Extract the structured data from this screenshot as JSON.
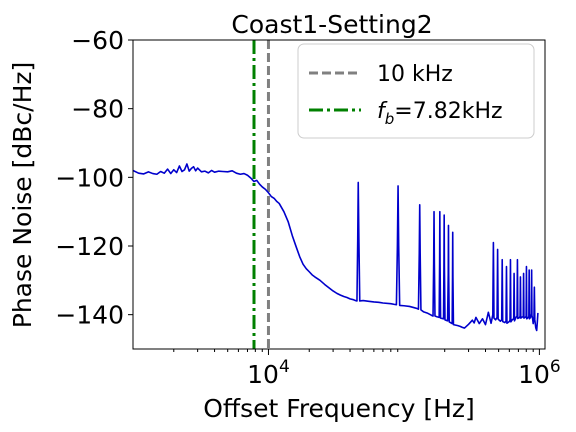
{
  "chart_data": {
    "type": "line",
    "title": "Coast1-Setting2",
    "xlabel": "Offset Frequency [Hz]",
    "ylabel": "Phase Noise [dBc/Hz]",
    "xscale": "log",
    "xlim": [
      1000,
      1100000
    ],
    "ylim": [
      -150,
      -60
    ],
    "x_ticks": [
      {
        "value": 10000,
        "base": "10",
        "exp": "4"
      },
      {
        "value": 1000000,
        "base": "10",
        "exp": "6"
      }
    ],
    "y_ticks": [
      {
        "value": -60,
        "label": "−60"
      },
      {
        "value": -80,
        "label": "−80"
      },
      {
        "value": -100,
        "label": "−100"
      },
      {
        "value": -120,
        "label": "−120"
      },
      {
        "value": -140,
        "label": "−140"
      }
    ],
    "grid": false,
    "legend_position": "top-right",
    "series": [
      {
        "color": "#0000cc",
        "style": "solid",
        "points": [
          [
            1000,
            -98.0
          ],
          [
            1100,
            -98.8
          ],
          [
            1200,
            -99.0
          ],
          [
            1300,
            -98.4
          ],
          [
            1400,
            -98.9
          ],
          [
            1500,
            -99.1
          ],
          [
            1600,
            -98.3
          ],
          [
            1700,
            -98.8
          ],
          [
            1800,
            -97.6
          ],
          [
            1900,
            -98.9
          ],
          [
            2000,
            -97.8
          ],
          [
            2100,
            -98.6
          ],
          [
            2200,
            -96.7
          ],
          [
            2300,
            -98.3
          ],
          [
            2400,
            -97.8
          ],
          [
            2500,
            -96.1
          ],
          [
            2600,
            -98.2
          ],
          [
            2700,
            -97.4
          ],
          [
            2800,
            -96.9
          ],
          [
            2900,
            -98.1
          ],
          [
            3000,
            -97.3
          ],
          [
            3200,
            -98.4
          ],
          [
            3400,
            -98.2
          ],
          [
            3600,
            -98.7
          ],
          [
            3800,
            -98.0
          ],
          [
            4000,
            -98.5
          ],
          [
            4300,
            -98.2
          ],
          [
            4600,
            -98.3
          ],
          [
            5000,
            -98.4
          ],
          [
            5400,
            -98.1
          ],
          [
            5800,
            -98.8
          ],
          [
            6200,
            -99.1
          ],
          [
            6600,
            -98.9
          ],
          [
            7000,
            -99.4
          ],
          [
            7400,
            -100.2
          ],
          [
            7800,
            -101.2
          ],
          [
            8200,
            -100.9
          ],
          [
            8600,
            -102.0
          ],
          [
            9000,
            -102.8
          ],
          [
            9500,
            -103.5
          ],
          [
            10000,
            -104.5
          ],
          [
            10500,
            -105.6
          ],
          [
            11000,
            -106.1
          ],
          [
            11500,
            -107.0
          ],
          [
            12000,
            -107.6
          ],
          [
            13000,
            -110.0
          ],
          [
            14000,
            -113.0
          ],
          [
            15000,
            -117.0
          ],
          [
            16000,
            -120.2
          ],
          [
            17000,
            -123.1
          ],
          [
            18000,
            -125.3
          ],
          [
            19000,
            -126.6
          ],
          [
            20000,
            -127.5
          ],
          [
            21000,
            -128.4
          ],
          [
            22000,
            -129.0
          ],
          [
            24000,
            -130.0
          ],
          [
            26000,
            -131.2
          ],
          [
            28000,
            -132.2
          ],
          [
            30000,
            -133.1
          ],
          [
            32000,
            -133.8
          ],
          [
            34000,
            -134.3
          ],
          [
            36000,
            -134.7
          ],
          [
            38000,
            -135.0
          ],
          [
            40000,
            -135.4
          ],
          [
            42000,
            -135.6
          ],
          [
            44000,
            -135.9
          ],
          [
            45000,
            -136.0
          ],
          [
            45600,
            -118.0
          ],
          [
            46000,
            -101.5
          ],
          [
            46500,
            -118.0
          ],
          [
            47200,
            -136.0
          ],
          [
            50000,
            -135.9
          ],
          [
            55000,
            -136.1
          ],
          [
            60000,
            -136.3
          ],
          [
            65000,
            -136.4
          ],
          [
            70000,
            -136.6
          ],
          [
            80000,
            -136.8
          ],
          [
            85000,
            -137.0
          ],
          [
            88000,
            -137.1
          ],
          [
            89500,
            -120.0
          ],
          [
            90500,
            -102.5
          ],
          [
            91500,
            -120.0
          ],
          [
            93000,
            -137.3
          ],
          [
            100000,
            -137.4
          ],
          [
            110000,
            -137.6
          ],
          [
            120000,
            -138.0
          ],
          [
            125000,
            -138.2
          ],
          [
            128000,
            -138.4
          ],
          [
            129800,
            -122.0
          ],
          [
            130800,
            -108.0
          ],
          [
            131800,
            -122.0
          ],
          [
            133500,
            -138.6
          ],
          [
            140000,
            -139.2
          ],
          [
            150000,
            -139.6
          ],
          [
            160000,
            -140.2
          ],
          [
            164000,
            -140.4
          ],
          [
            165800,
            -125.0
          ],
          [
            166800,
            -110.0
          ],
          [
            167800,
            -125.0
          ],
          [
            169500,
            -140.4
          ],
          [
            175000,
            -140.6
          ],
          [
            182000,
            -140.8
          ],
          [
            183400,
            -125.0
          ],
          [
            184100,
            -110.0
          ],
          [
            184800,
            -125.0
          ],
          [
            186500,
            -141.0
          ],
          [
            196000,
            -141.2
          ],
          [
            197400,
            -126.0
          ],
          [
            198200,
            -111.0
          ],
          [
            199000,
            -126.0
          ],
          [
            201000,
            -141.5
          ],
          [
            210000,
            -141.8
          ],
          [
            212400,
            -128.0
          ],
          [
            213200,
            -114.0
          ],
          [
            214000,
            -128.0
          ],
          [
            216000,
            -142.1
          ],
          [
            227000,
            -142.6
          ],
          [
            228400,
            -129.0
          ],
          [
            229200,
            -116.0
          ],
          [
            230000,
            -129.0
          ],
          [
            232000,
            -142.9
          ],
          [
            250000,
            -143.2
          ],
          [
            260000,
            -143.4
          ],
          [
            270000,
            -143.7
          ],
          [
            280000,
            -143.9
          ],
          [
            300000,
            -142.8
          ],
          [
            320000,
            -141.6
          ],
          [
            330000,
            -142.4
          ],
          [
            340000,
            -140.8
          ],
          [
            360000,
            -142.6
          ],
          [
            380000,
            -141.2
          ],
          [
            400000,
            -142.9
          ],
          [
            420000,
            -139.3
          ],
          [
            440000,
            -142.5
          ],
          [
            453000,
            -140.0
          ],
          [
            455500,
            -128.0
          ],
          [
            457500,
            -119.0
          ],
          [
            459500,
            -128.0
          ],
          [
            462000,
            -141.0
          ],
          [
            475000,
            -141.5
          ],
          [
            487000,
            -140.8
          ],
          [
            489500,
            -130.0
          ],
          [
            491500,
            -121.0
          ],
          [
            493500,
            -130.0
          ],
          [
            496000,
            -141.3
          ],
          [
            515000,
            -141.9
          ],
          [
            527000,
            -141.5
          ],
          [
            529500,
            -132.0
          ],
          [
            531500,
            -124.0
          ],
          [
            533500,
            -132.0
          ],
          [
            536000,
            -142.0
          ],
          [
            555000,
            -142.3
          ],
          [
            567000,
            -141.9
          ],
          [
            569500,
            -133.0
          ],
          [
            571500,
            -126.0
          ],
          [
            573500,
            -133.0
          ],
          [
            576000,
            -142.5
          ],
          [
            600000,
            -142.0
          ],
          [
            607000,
            -141.6
          ],
          [
            609500,
            -133.0
          ],
          [
            611500,
            -124.0
          ],
          [
            613500,
            -133.0
          ],
          [
            616000,
            -142.1
          ],
          [
            630000,
            -141.5
          ],
          [
            646000,
            -141.2
          ],
          [
            648500,
            -134.0
          ],
          [
            650500,
            -128.0
          ],
          [
            652500,
            -134.0
          ],
          [
            655000,
            -141.8
          ],
          [
            672000,
            -140.8
          ],
          [
            684000,
            -140.4
          ],
          [
            686500,
            -131.0
          ],
          [
            688500,
            -124.0
          ],
          [
            690500,
            -131.0
          ],
          [
            693000,
            -141.1
          ],
          [
            710000,
            -140.9
          ],
          [
            720000,
            -140.5
          ],
          [
            722500,
            -134.0
          ],
          [
            724500,
            -129.0
          ],
          [
            726500,
            -134.0
          ],
          [
            729000,
            -141.0
          ],
          [
            745000,
            -140.7
          ],
          [
            760000,
            -140.6
          ],
          [
            762500,
            -134.0
          ],
          [
            764500,
            -128.0
          ],
          [
            766500,
            -134.0
          ],
          [
            769000,
            -141.0
          ],
          [
            785000,
            -140.8
          ],
          [
            798000,
            -140.5
          ],
          [
            800500,
            -133.0
          ],
          [
            802500,
            -126.0
          ],
          [
            804500,
            -133.0
          ],
          [
            807000,
            -141.2
          ],
          [
            822000,
            -140.9
          ],
          [
            836000,
            -140.6
          ],
          [
            838500,
            -133.0
          ],
          [
            840500,
            -127.0
          ],
          [
            842500,
            -133.0
          ],
          [
            845000,
            -141.2
          ],
          [
            860000,
            -140.8
          ],
          [
            872000,
            -139.7
          ],
          [
            874500,
            -133.0
          ],
          [
            876500,
            -127.0
          ],
          [
            878500,
            -133.0
          ],
          [
            881000,
            -140.2
          ],
          [
            892000,
            -141.3
          ],
          [
            900000,
            -142.6
          ],
          [
            912000,
            -141.0
          ],
          [
            915000,
            -136.0
          ],
          [
            918000,
            -132.0
          ],
          [
            921000,
            -136.0
          ],
          [
            925000,
            -141.5
          ],
          [
            940000,
            -143.8
          ],
          [
            955000,
            -144.6
          ],
          [
            966000,
            -142.0
          ],
          [
            975000,
            -139.5
          ]
        ]
      }
    ],
    "vlines": [
      {
        "x": 10000,
        "color": "#808080",
        "style": "dashed",
        "label": "10 kHz"
      },
      {
        "x": 7820,
        "color": "#008000",
        "style": "dashdot",
        "label_math": "f",
        "label_sub": "b",
        "label_rest": "=7.82kHz"
      }
    ]
  }
}
